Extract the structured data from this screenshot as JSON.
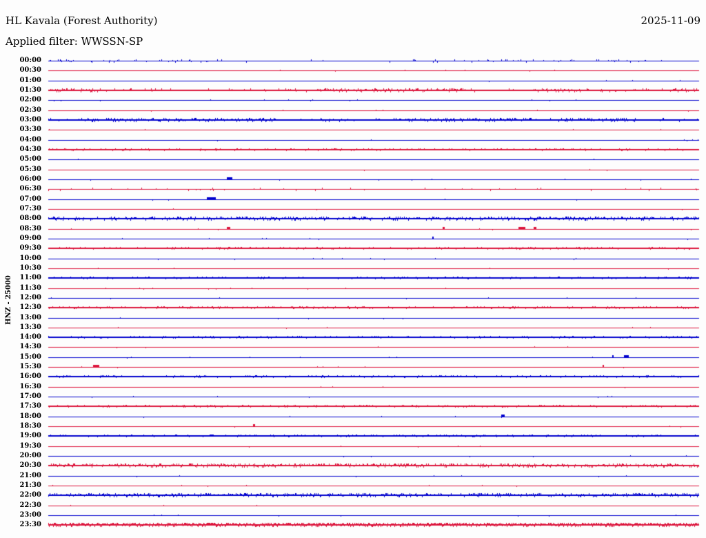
{
  "header": {
    "station": "HL Kavala (Forest Authority)",
    "date": "2025-11-09",
    "filter_line": "Applied filter: WWSSN-SP"
  },
  "axis": {
    "vertical_label": "HNZ - 25000"
  },
  "chart_data": {
    "type": "line",
    "subtype": "helicorder-day-plot",
    "title": "HL Kavala (Forest Authority)",
    "date": "2025-11-09",
    "filter": "WWSSN-SP",
    "channel": "HNZ",
    "scale": 25000,
    "row_duration_minutes": 30,
    "x_range_minutes": [
      0,
      30
    ],
    "rows_start": "00:00",
    "rows_end": "23:30",
    "grid": false,
    "legend": "none",
    "colors": {
      "blue": "#0000CD",
      "red": "#DC143C"
    },
    "rows": [
      {
        "time": "00:00",
        "color": "blue",
        "activity": "medium-bursts",
        "bursts": [
          [
            0.0,
            0.27
          ],
          [
            0.55,
            0.92
          ]
        ]
      },
      {
        "time": "00:30",
        "color": "red",
        "activity": "quiet"
      },
      {
        "time": "01:00",
        "color": "blue",
        "activity": "quiet"
      },
      {
        "time": "01:30",
        "color": "red",
        "activity": "active-dense",
        "bursts": [
          [
            0.0,
            0.09
          ],
          [
            0.41,
            0.64
          ],
          [
            0.74,
            0.83
          ],
          [
            0.955,
            1.0
          ]
        ]
      },
      {
        "time": "02:00",
        "color": "blue",
        "activity": "quiet"
      },
      {
        "time": "02:30",
        "color": "red",
        "activity": "quiet"
      },
      {
        "time": "03:00",
        "color": "blue",
        "activity": "active-dense",
        "bursts": [
          [
            0.06,
            0.35
          ],
          [
            0.54,
            0.75
          ],
          [
            0.79,
            0.9
          ]
        ]
      },
      {
        "time": "03:30",
        "color": "red",
        "activity": "quiet"
      },
      {
        "time": "04:00",
        "color": "blue",
        "activity": "quiet"
      },
      {
        "time": "04:30",
        "color": "red",
        "activity": "active"
      },
      {
        "time": "05:00",
        "color": "blue",
        "activity": "quiet"
      },
      {
        "time": "05:30",
        "color": "red",
        "activity": "quiet"
      },
      {
        "time": "06:00",
        "color": "blue",
        "activity": "quiet",
        "events": [
          {
            "t": 0.279,
            "w": 8
          }
        ]
      },
      {
        "time": "06:30",
        "color": "red",
        "activity": "scattered"
      },
      {
        "time": "07:00",
        "color": "blue",
        "activity": "quiet",
        "events": [
          {
            "t": 0.25,
            "w": 13
          }
        ]
      },
      {
        "time": "07:30",
        "color": "red",
        "activity": "sparse"
      },
      {
        "time": "08:00",
        "color": "blue",
        "activity": "active-dense"
      },
      {
        "time": "08:30",
        "color": "red",
        "activity": "quiet",
        "events": [
          {
            "t": 0.277,
            "w": 5
          },
          {
            "t": 0.607,
            "w": 3
          },
          {
            "t": 0.728,
            "w": 10
          },
          {
            "t": 0.748,
            "w": 4
          }
        ]
      },
      {
        "time": "09:00",
        "color": "blue",
        "activity": "quiet",
        "events": [
          {
            "t": 0.591,
            "w": 2
          }
        ]
      },
      {
        "time": "09:30",
        "color": "red",
        "activity": "active"
      },
      {
        "time": "10:00",
        "color": "blue",
        "activity": "quiet"
      },
      {
        "time": "10:30",
        "color": "red",
        "activity": "quiet"
      },
      {
        "time": "11:00",
        "color": "blue",
        "activity": "active"
      },
      {
        "time": "11:30",
        "color": "red",
        "activity": "quiet"
      },
      {
        "time": "12:00",
        "color": "blue",
        "activity": "quiet"
      },
      {
        "time": "12:30",
        "color": "red",
        "activity": "active"
      },
      {
        "time": "13:00",
        "color": "blue",
        "activity": "quiet"
      },
      {
        "time": "13:30",
        "color": "red",
        "activity": "quiet"
      },
      {
        "time": "14:00",
        "color": "blue",
        "activity": "active"
      },
      {
        "time": "14:30",
        "color": "red",
        "activity": "quiet"
      },
      {
        "time": "15:00",
        "color": "blue",
        "activity": "quiet",
        "events": [
          {
            "t": 0.868,
            "w": 2
          },
          {
            "t": 0.888,
            "w": 7
          }
        ]
      },
      {
        "time": "15:30",
        "color": "red",
        "activity": "quiet",
        "events": [
          {
            "t": 0.074,
            "w": 9
          },
          {
            "t": 0.853,
            "w": 2
          }
        ]
      },
      {
        "time": "16:00",
        "color": "blue",
        "activity": "active"
      },
      {
        "time": "16:30",
        "color": "red",
        "activity": "quiet"
      },
      {
        "time": "17:00",
        "color": "blue",
        "activity": "quiet"
      },
      {
        "time": "17:30",
        "color": "red",
        "activity": "active"
      },
      {
        "time": "18:00",
        "color": "blue",
        "activity": "quiet",
        "events": [
          {
            "t": 0.699,
            "w": 5
          }
        ]
      },
      {
        "time": "18:30",
        "color": "red",
        "activity": "quiet",
        "events": [
          {
            "t": 0.316,
            "w": 3
          }
        ]
      },
      {
        "time": "19:00",
        "color": "blue",
        "activity": "active"
      },
      {
        "time": "19:30",
        "color": "red",
        "activity": "quiet"
      },
      {
        "time": "20:00",
        "color": "blue",
        "activity": "quiet"
      },
      {
        "time": "20:30",
        "color": "red",
        "activity": "active-dense"
      },
      {
        "time": "21:00",
        "color": "blue",
        "activity": "quiet"
      },
      {
        "time": "21:30",
        "color": "red",
        "activity": "quiet"
      },
      {
        "time": "22:00",
        "color": "blue",
        "activity": "active-dense"
      },
      {
        "time": "22:30",
        "color": "red",
        "activity": "quiet"
      },
      {
        "time": "23:00",
        "color": "blue",
        "activity": "quiet"
      },
      {
        "time": "23:30",
        "color": "red",
        "activity": "active-heavy"
      }
    ]
  }
}
